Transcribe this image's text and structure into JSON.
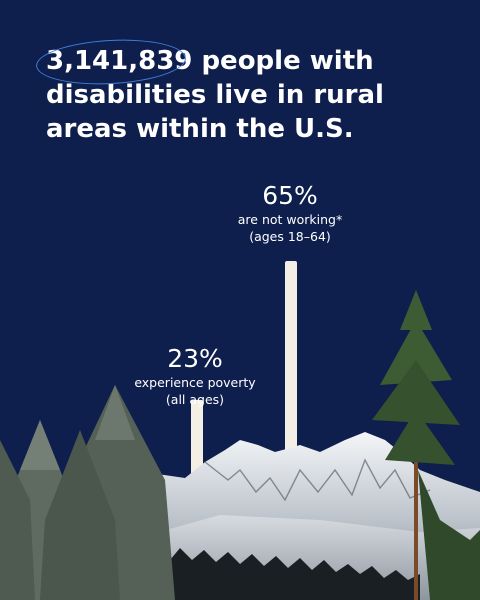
{
  "headline": {
    "number": "3,141,839",
    "rest": " people with disabilities live in rural areas within the U.S."
  },
  "chart_data": {
    "type": "bar",
    "categories": [
      "experience poverty",
      "are not working*"
    ],
    "values": [
      23,
      65
    ],
    "ylim": [
      0,
      100
    ],
    "bars": [
      {
        "value_label": "23%",
        "line1": "experience poverty",
        "line2": "(all ages)"
      },
      {
        "value_label": "65%",
        "line1": "are not working*",
        "line2": "(ages 18–64)"
      }
    ]
  },
  "colors": {
    "background": "#0f1f4d",
    "bar": "#f3efe4",
    "highlight_ellipse": "#3e7fd8",
    "text": "#ffffff"
  }
}
